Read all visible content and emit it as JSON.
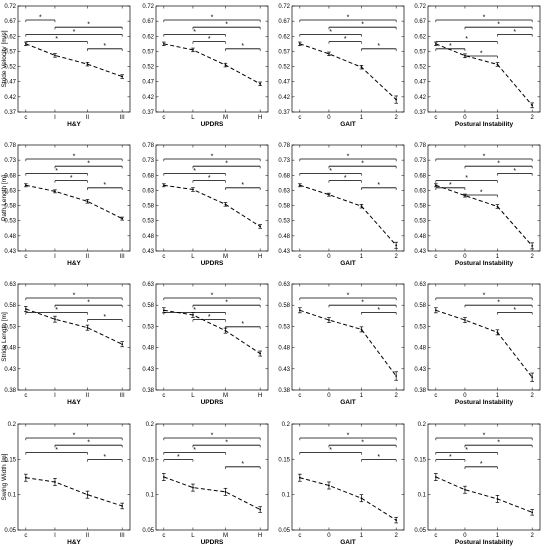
{
  "chart_data": [
    {
      "type": "line",
      "row": 0,
      "col": 0,
      "ylabel": "Stride Velocity [m/s]",
      "xlabel": "H&Y",
      "categories": [
        "c",
        "I",
        "II",
        "III"
      ],
      "yticks": [
        "0.37",
        "0.42",
        "0.47",
        "0.52",
        "0.57",
        "0.62",
        "0.67",
        "0.72"
      ],
      "ylim": [
        0.37,
        0.72
      ],
      "values": [
        0.595,
        0.557,
        0.528,
        0.487
      ],
      "errors": [
        0.006,
        0.006,
        0.006,
        0.006
      ],
      "brackets": [
        [
          0,
          1
        ],
        [
          1,
          3
        ],
        [
          0,
          3
        ],
        [
          0,
          2
        ],
        [
          2,
          3
        ]
      ]
    },
    {
      "type": "line",
      "row": 0,
      "col": 1,
      "ylabel": "",
      "xlabel": "UPDRS",
      "categories": [
        "c",
        "L",
        "M",
        "H"
      ],
      "yticks": [
        "0.37",
        "0.42",
        "0.47",
        "0.52",
        "0.57",
        "0.62",
        "0.67",
        "0.72"
      ],
      "ylim": [
        0.37,
        0.72
      ],
      "values": [
        0.595,
        0.575,
        0.525,
        0.463
      ],
      "errors": [
        0.006,
        0.006,
        0.006,
        0.006
      ],
      "brackets": [
        [
          0,
          3
        ],
        [
          1,
          3
        ],
        [
          0,
          2
        ],
        [
          1,
          2
        ],
        [
          2,
          3
        ]
      ]
    },
    {
      "type": "line",
      "row": 0,
      "col": 2,
      "ylabel": "",
      "xlabel": "GAIT",
      "categories": [
        "c",
        "0",
        "1",
        "2"
      ],
      "yticks": [
        "0.37",
        "0.42",
        "0.47",
        "0.52",
        "0.57",
        "0.62",
        "0.67",
        "0.72"
      ],
      "ylim": [
        0.37,
        0.72
      ],
      "values": [
        0.595,
        0.562,
        0.518,
        0.411
      ],
      "errors": [
        0.006,
        0.006,
        0.006,
        0.012
      ],
      "brackets": [
        [
          0,
          3
        ],
        [
          1,
          3
        ],
        [
          0,
          2
        ],
        [
          1,
          2
        ],
        [
          2,
          3
        ]
      ]
    },
    {
      "type": "line",
      "row": 0,
      "col": 3,
      "ylabel": "",
      "xlabel": "Postural Instability",
      "categories": [
        "c",
        "0",
        "1",
        "2"
      ],
      "yticks": [
        "0.37",
        "0.42",
        "0.47",
        "0.52",
        "0.57",
        "0.62",
        "0.67",
        "0.72"
      ],
      "ylim": [
        0.37,
        0.72
      ],
      "values": [
        0.595,
        0.556,
        0.527,
        0.392
      ],
      "errors": [
        0.006,
        0.006,
        0.006,
        0.008
      ],
      "brackets": [
        [
          0,
          3
        ],
        [
          1,
          3
        ],
        [
          2,
          3
        ],
        [
          0,
          2
        ],
        [
          0,
          1
        ],
        [
          1,
          2
        ]
      ]
    },
    {
      "type": "line",
      "row": 1,
      "col": 0,
      "ylabel": "Path Length [m]",
      "xlabel": "H&Y",
      "categories": [
        "c",
        "I",
        "II",
        "III"
      ],
      "yticks": [
        "0.43",
        "0.48",
        "0.53",
        "0.58",
        "0.63",
        "0.68",
        "0.73",
        "0.78"
      ],
      "ylim": [
        0.43,
        0.78
      ],
      "values": [
        0.647,
        0.627,
        0.594,
        0.537
      ],
      "errors": [
        0.005,
        0.005,
        0.006,
        0.005
      ],
      "brackets": [
        [
          0,
          3
        ],
        [
          1,
          3
        ],
        [
          0,
          2
        ],
        [
          1,
          2
        ],
        [
          2,
          3
        ]
      ]
    },
    {
      "type": "line",
      "row": 1,
      "col": 1,
      "ylabel": "",
      "xlabel": "UPDRS",
      "categories": [
        "c",
        "L",
        "M",
        "H"
      ],
      "yticks": [
        "0.43",
        "0.48",
        "0.53",
        "0.58",
        "0.63",
        "0.68",
        "0.73",
        "0.78"
      ],
      "ylim": [
        0.43,
        0.78
      ],
      "values": [
        0.647,
        0.633,
        0.584,
        0.511
      ],
      "errors": [
        0.005,
        0.006,
        0.006,
        0.006
      ],
      "brackets": [
        [
          0,
          3
        ],
        [
          1,
          3
        ],
        [
          0,
          2
        ],
        [
          1,
          2
        ],
        [
          2,
          3
        ]
      ]
    },
    {
      "type": "line",
      "row": 1,
      "col": 2,
      "ylabel": "",
      "xlabel": "GAIT",
      "categories": [
        "c",
        "0",
        "1",
        "2"
      ],
      "yticks": [
        "0.43",
        "0.48",
        "0.53",
        "0.58",
        "0.63",
        "0.68",
        "0.73",
        "0.78"
      ],
      "ylim": [
        0.43,
        0.78
      ],
      "values": [
        0.647,
        0.616,
        0.578,
        0.449
      ],
      "errors": [
        0.005,
        0.005,
        0.006,
        0.01
      ],
      "brackets": [
        [
          0,
          3
        ],
        [
          1,
          3
        ],
        [
          0,
          2
        ],
        [
          1,
          2
        ],
        [
          2,
          3
        ]
      ]
    },
    {
      "type": "line",
      "row": 1,
      "col": 3,
      "ylabel": "",
      "xlabel": "Postural Instability",
      "categories": [
        "c",
        "0",
        "1",
        "2"
      ],
      "yticks": [
        "0.43",
        "0.48",
        "0.53",
        "0.58",
        "0.63",
        "0.68",
        "0.73",
        "0.78"
      ],
      "ylim": [
        0.43,
        0.78
      ],
      "values": [
        0.647,
        0.613,
        0.577,
        0.447
      ],
      "errors": [
        0.005,
        0.005,
        0.006,
        0.01
      ],
      "brackets": [
        [
          0,
          3
        ],
        [
          1,
          3
        ],
        [
          2,
          3
        ],
        [
          0,
          2
        ],
        [
          0,
          1
        ],
        [
          1,
          2
        ]
      ]
    },
    {
      "type": "line",
      "row": 2,
      "col": 0,
      "ylabel": "Stride Length [m]",
      "xlabel": "H&Y",
      "categories": [
        "c",
        "I",
        "II",
        "III"
      ],
      "yticks": [
        "0.38",
        "0.43",
        "0.48",
        "0.53",
        "0.58",
        "0.63"
      ],
      "ylim": [
        0.38,
        0.63
      ],
      "values": [
        0.571,
        0.547,
        0.527,
        0.488
      ],
      "errors": [
        0.006,
        0.007,
        0.006,
        0.006
      ],
      "brackets": [
        [
          0,
          3
        ],
        [
          1,
          3
        ],
        [
          0,
          2
        ],
        [
          2,
          3
        ]
      ]
    },
    {
      "type": "line",
      "row": 2,
      "col": 1,
      "ylabel": "",
      "xlabel": "UPDRS",
      "categories": [
        "c",
        "L",
        "M",
        "H"
      ],
      "yticks": [
        "0.38",
        "0.43",
        "0.48",
        "0.53",
        "0.58",
        "0.63"
      ],
      "ylim": [
        0.38,
        0.63
      ],
      "values": [
        0.568,
        0.557,
        0.52,
        0.466
      ],
      "errors": [
        0.006,
        0.006,
        0.006,
        0.006
      ],
      "brackets": [
        [
          0,
          3
        ],
        [
          1,
          3
        ],
        [
          0,
          2
        ],
        [
          1,
          2
        ],
        [
          2,
          3
        ]
      ]
    },
    {
      "type": "line",
      "row": 2,
      "col": 2,
      "ylabel": "",
      "xlabel": "GAIT",
      "categories": [
        "c",
        "0",
        "1",
        "2"
      ],
      "yticks": [
        "0.38",
        "0.43",
        "0.48",
        "0.53",
        "0.58",
        "0.63"
      ],
      "ylim": [
        0.38,
        0.63
      ],
      "values": [
        0.568,
        0.545,
        0.523,
        0.413
      ],
      "errors": [
        0.006,
        0.006,
        0.006,
        0.01
      ],
      "brackets": [
        [
          0,
          3
        ],
        [
          1,
          3
        ],
        [
          2,
          3
        ]
      ]
    },
    {
      "type": "line",
      "row": 2,
      "col": 3,
      "ylabel": "",
      "xlabel": "Postural Instability",
      "categories": [
        "c",
        "0",
        "1",
        "2"
      ],
      "yticks": [
        "0.38",
        "0.43",
        "0.48",
        "0.53",
        "0.58",
        "0.63"
      ],
      "ylim": [
        0.38,
        0.63
      ],
      "values": [
        0.568,
        0.545,
        0.516,
        0.41
      ],
      "errors": [
        0.006,
        0.006,
        0.006,
        0.01
      ],
      "brackets": [
        [
          0,
          3
        ],
        [
          1,
          3
        ],
        [
          2,
          3
        ]
      ]
    },
    {
      "type": "line",
      "row": 3,
      "col": 0,
      "ylabel": "Swing Width [m]",
      "xlabel": "H&Y",
      "categories": [
        "c",
        "I",
        "II",
        "III"
      ],
      "yticks": [
        "0.05",
        "0.1",
        "0.15",
        "0.2"
      ],
      "ylim": [
        0.05,
        0.2
      ],
      "values": [
        0.124,
        0.118,
        0.1,
        0.084
      ],
      "errors": [
        0.005,
        0.005,
        0.005,
        0.004
      ],
      "brackets": [
        [
          0,
          3
        ],
        [
          1,
          3
        ],
        [
          0,
          2
        ],
        [
          2,
          3
        ]
      ]
    },
    {
      "type": "line",
      "row": 3,
      "col": 1,
      "ylabel": "",
      "xlabel": "UPDRS",
      "categories": [
        "c",
        "L",
        "M",
        "H"
      ],
      "yticks": [
        "0.05",
        "0.1",
        "0.15",
        "0.2"
      ],
      "ylim": [
        0.05,
        0.2
      ],
      "values": [
        0.125,
        0.11,
        0.104,
        0.079
      ],
      "errors": [
        0.005,
        0.005,
        0.005,
        0.004
      ],
      "brackets": [
        [
          0,
          3
        ],
        [
          1,
          3
        ],
        [
          0,
          2
        ],
        [
          0,
          1
        ],
        [
          2,
          3
        ]
      ]
    },
    {
      "type": "line",
      "row": 3,
      "col": 2,
      "ylabel": "",
      "xlabel": "GAIT",
      "categories": [
        "c",
        "0",
        "1",
        "2"
      ],
      "yticks": [
        "0.05",
        "0.1",
        "0.15",
        "0.2"
      ],
      "ylim": [
        0.05,
        0.2
      ],
      "values": [
        0.124,
        0.113,
        0.095,
        0.064
      ],
      "errors": [
        0.005,
        0.005,
        0.005,
        0.004
      ],
      "brackets": [
        [
          0,
          3
        ],
        [
          1,
          3
        ],
        [
          0,
          2
        ],
        [
          2,
          3
        ]
      ]
    },
    {
      "type": "line",
      "row": 3,
      "col": 3,
      "ylabel": "",
      "xlabel": "Postural Instability",
      "categories": [
        "c",
        "0",
        "1",
        "2"
      ],
      "yticks": [
        "0.05",
        "0.1",
        "0.15",
        "0.2"
      ],
      "ylim": [
        0.05,
        0.2
      ],
      "values": [
        0.125,
        0.107,
        0.094,
        0.075
      ],
      "errors": [
        0.005,
        0.005,
        0.005,
        0.004
      ],
      "brackets": [
        [
          0,
          3
        ],
        [
          1,
          3
        ],
        [
          0,
          2
        ],
        [
          0,
          1
        ],
        [
          1,
          2
        ]
      ]
    }
  ],
  "star_symbol": "*",
  "colors": {
    "axis": "#000000",
    "line": "#000000"
  }
}
